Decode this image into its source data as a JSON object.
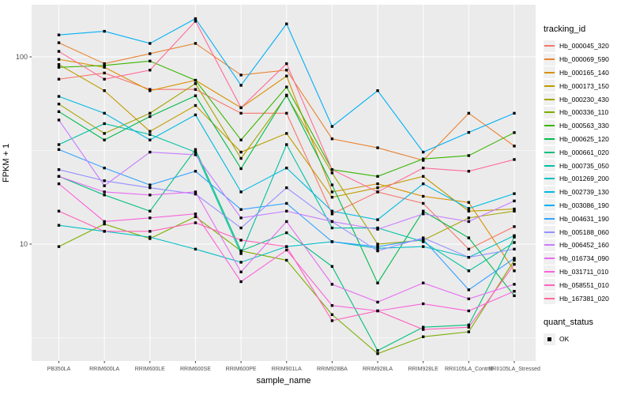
{
  "chart_data": {
    "type": "line",
    "title": "",
    "xlabel": "sample_name",
    "ylabel": "FPKM + 1",
    "y_scale": "log10",
    "yticks": [
      100,
      10
    ],
    "ytick_labels": [
      "100",
      "10"
    ],
    "y_minor": [
      31.623,
      3.162
    ],
    "ylim": [
      2.4,
      190
    ],
    "grid": "white major and minor gridlines on gray panel",
    "panel_bg": "#EBEBEB",
    "grid_color": "#FFFFFF",
    "axis_text_color": "#4D4D4D",
    "point_shape": "filled-square",
    "point_color": "#000000",
    "legend_title": "tracking_id",
    "legend2_title": "quant_status",
    "quant_status_label": "OK",
    "legend_position": "right",
    "categories": [
      "PB350LA",
      "RRIM600LA",
      "RRIM600LE",
      "RRIM600SE",
      "RRIM600PE",
      "RRIM901LA",
      "RRIM928BA",
      "RRIM928LA",
      "RRIM928LE",
      "RRII105LA_Control",
      "RRII105LA_Stressed"
    ],
    "series": [
      {
        "name": "Hb_000045_320",
        "color": "#F8766D",
        "values": [
          76,
          82,
          67,
          67,
          50,
          50,
          14.5,
          19,
          16.5,
          9.4,
          12.4
        ]
      },
      {
        "name": "Hb_000069_590",
        "color": "#EA8331",
        "values": [
          119,
          92,
          104,
          118,
          80,
          85,
          36.5,
          32.7,
          28,
          50,
          33.4
        ]
      },
      {
        "name": "Hb_000165_140",
        "color": "#D89000",
        "values": [
          97,
          88,
          66,
          75,
          53.5,
          79,
          19,
          21,
          18,
          16.7,
          7.2
        ]
      },
      {
        "name": "Hb_000173_150",
        "color": "#C09B00",
        "values": [
          91,
          66,
          40,
          55,
          31,
          39,
          17.8,
          20,
          23,
          15,
          15.4
        ]
      },
      {
        "name": "Hb_000230_430",
        "color": "#A3A500",
        "values": [
          56,
          39,
          50,
          72,
          28.7,
          62,
          24,
          10,
          10.5,
          13.8,
          15
        ]
      },
      {
        "name": "Hb_000336_110",
        "color": "#7CAE00",
        "values": [
          9.7,
          12.8,
          10.7,
          14,
          9.2,
          8.2,
          4.2,
          2.6,
          3.2,
          3.4,
          8.2
        ]
      },
      {
        "name": "Hb_000563_330",
        "color": "#39B600",
        "values": [
          88,
          90,
          95,
          75,
          36,
          69,
          25,
          23,
          28.5,
          29.7,
          39.4
        ]
      },
      {
        "name": "Hb_000625_120",
        "color": "#00BB4E",
        "values": [
          51,
          36,
          48,
          62,
          25.3,
          62.5,
          20.7,
          6.2,
          15,
          10.8,
          5.3
        ]
      },
      {
        "name": "Hb_000661_020",
        "color": "#00BF7D",
        "values": [
          23,
          18.3,
          15,
          32,
          9.2,
          11.5,
          7.6,
          2.7,
          3.6,
          3.7,
          10.9
        ]
      },
      {
        "name": "Hb_000735_050",
        "color": "#00C1A3",
        "values": [
          34,
          44,
          38.5,
          31,
          8.9,
          34,
          12.2,
          12.2,
          10.3,
          7.2,
          10.2
        ]
      },
      {
        "name": "Hb_001269_200",
        "color": "#00BFC4",
        "values": [
          12.6,
          11.7,
          10.9,
          9.4,
          8,
          9.7,
          10.3,
          9.5,
          9.7,
          8.5,
          11.1
        ]
      },
      {
        "name": "Hb_002739_130",
        "color": "#00BAE0",
        "values": [
          61.5,
          50,
          36,
          49,
          19,
          25.5,
          15,
          13.5,
          21,
          15.5,
          18.6
        ]
      },
      {
        "name": "Hb_003086_190",
        "color": "#00B0F6",
        "values": [
          131,
          137,
          118,
          160,
          70.5,
          150,
          42.5,
          66,
          31,
          39.5,
          50
        ]
      },
      {
        "name": "Hb_004631_190",
        "color": "#35A2FF",
        "values": [
          32,
          25.5,
          20.7,
          24.5,
          15.3,
          16.5,
          10.3,
          9.7,
          10.6,
          5.7,
          8.4
        ]
      },
      {
        "name": "Hb_005188_060",
        "color": "#9590FF",
        "values": [
          25,
          21.8,
          20,
          18.5,
          12.2,
          20,
          13.2,
          9.2,
          10.8,
          8.5,
          9.4
        ]
      },
      {
        "name": "Hb_006452_160",
        "color": "#C77CFF",
        "values": [
          46,
          20.5,
          31,
          30,
          13.8,
          15,
          13.2,
          12,
          14.5,
          13.2,
          17
        ]
      },
      {
        "name": "Hb_016734_090",
        "color": "#E76BF3",
        "values": [
          23,
          19,
          18.3,
          19,
          7.1,
          13.2,
          6.1,
          4.9,
          6.2,
          5.1,
          6.1
        ]
      },
      {
        "name": "Hb_031711_010",
        "color": "#FA62DB",
        "values": [
          21,
          13.2,
          13.8,
          14.5,
          6.3,
          9.3,
          4.7,
          4.4,
          4.8,
          4.4,
          5.6
        ]
      },
      {
        "name": "Hb_058551_010",
        "color": "#FF62BC",
        "values": [
          15,
          11.7,
          11.7,
          13,
          10.5,
          9.7,
          3.9,
          4.4,
          3.5,
          3.6,
          7.8
        ]
      },
      {
        "name": "Hb_167381_020",
        "color": "#FF6A98",
        "values": [
          107,
          76,
          85,
          155,
          53.5,
          92,
          25,
          19,
          25.5,
          24.5,
          28.3
        ]
      }
    ]
  }
}
